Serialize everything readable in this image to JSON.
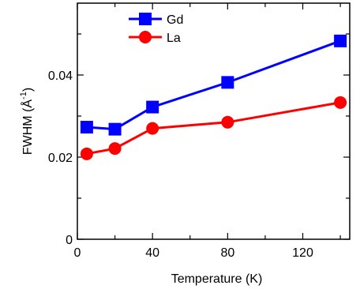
{
  "chart_data": {
    "type": "line",
    "xlabel": "Temperature (K)",
    "ylabel_main": "FWHM (Å",
    "ylabel_sup": "-1",
    "ylabel_close": ")",
    "x_ticks": [
      {
        "value": 0,
        "label": "0"
      },
      {
        "value": 20,
        "label": ""
      },
      {
        "value": 40,
        "label": "40"
      },
      {
        "value": 60,
        "label": ""
      },
      {
        "value": 80,
        "label": "80"
      },
      {
        "value": 100,
        "label": ""
      },
      {
        "value": 120,
        "label": "120"
      },
      {
        "value": 140,
        "label": ""
      }
    ],
    "y_ticks": [
      {
        "value": 0,
        "label": "0"
      },
      {
        "value": 0.01,
        "label": ""
      },
      {
        "value": 0.02,
        "label": "0.02"
      },
      {
        "value": 0.03,
        "label": ""
      },
      {
        "value": 0.04,
        "label": "0.04"
      },
      {
        "value": 0.05,
        "label": ""
      }
    ],
    "xlim": [
      0,
      145
    ],
    "ylim": [
      0,
      0.0575
    ],
    "grid": false,
    "legend_position": "top-left",
    "series": [
      {
        "name": "Gd",
        "color": "#0000ff",
        "marker": "square",
        "x": [
          5,
          20,
          40,
          80,
          140
        ],
        "y": [
          0.0273,
          0.0268,
          0.0322,
          0.0382,
          0.0483
        ]
      },
      {
        "name": "La",
        "color": "#ff0000",
        "marker": "circle",
        "x": [
          5,
          20,
          40,
          80,
          140
        ],
        "y": [
          0.0208,
          0.0221,
          0.027,
          0.0285,
          0.0333
        ]
      }
    ]
  }
}
